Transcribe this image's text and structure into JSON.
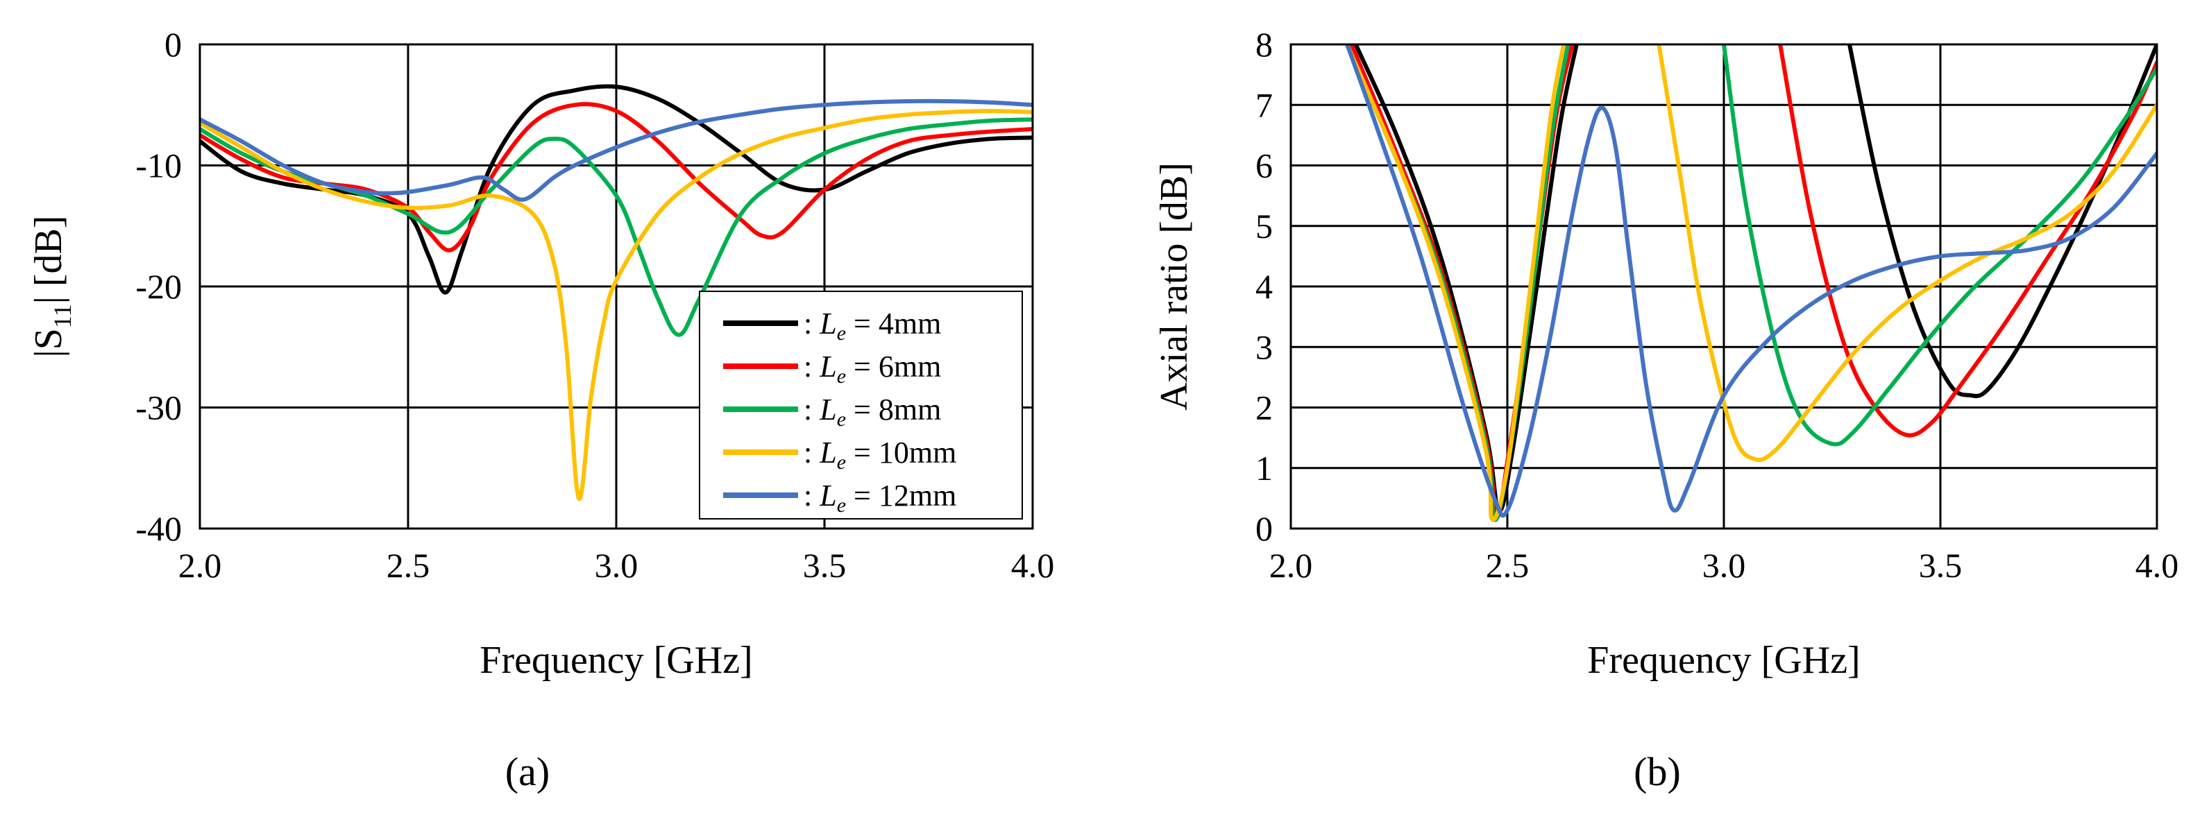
{
  "chart_data": [
    {
      "type": "line",
      "panel_label": "(a)",
      "xlabel": "Frequency [GHz]",
      "ylabel_main": "|S",
      "ylabel_sub": "11",
      "ylabel_tail": "| [dB]",
      "xlim": [
        2.0,
        4.0
      ],
      "ylim": [
        -40,
        0
      ],
      "xticks": [
        2.0,
        2.5,
        3.0,
        3.5,
        4.0
      ],
      "xtick_labels": [
        "2.0",
        "2.5",
        "3.0",
        "3.5",
        "4.0"
      ],
      "yticks": [
        0,
        -10,
        -20,
        -30,
        -40
      ],
      "ytick_labels": [
        "0",
        "-10",
        "-20",
        "-30",
        "-40"
      ],
      "grid": true,
      "legend_position": "lower-right",
      "series": [
        {
          "name": "Le = 4mm",
          "legend_prefix": ": ",
          "legend_var": "L",
          "legend_sub": "e",
          "legend_val": " = 4mm",
          "color": "#000000",
          "x": [
            2.0,
            2.1,
            2.2,
            2.3,
            2.4,
            2.5,
            2.55,
            2.59,
            2.63,
            2.7,
            2.8,
            2.9,
            3.0,
            3.1,
            3.2,
            3.3,
            3.4,
            3.5,
            3.6,
            3.7,
            3.8,
            3.9,
            4.0
          ],
          "y": [
            -8,
            -10.5,
            -11.5,
            -12,
            -12.5,
            -14,
            -17.5,
            -20.5,
            -17,
            -10,
            -5,
            -3.8,
            -3.5,
            -4.5,
            -6.5,
            -9,
            -11.5,
            -12,
            -10.5,
            -9,
            -8.2,
            -7.8,
            -7.7
          ]
        },
        {
          "name": "Le = 6mm",
          "legend_prefix": ": ",
          "legend_var": "L",
          "legend_sub": "e",
          "legend_val": " = 6mm",
          "color": "#ff0000",
          "x": [
            2.0,
            2.1,
            2.2,
            2.3,
            2.4,
            2.5,
            2.55,
            2.6,
            2.65,
            2.7,
            2.8,
            2.9,
            3.0,
            3.1,
            3.2,
            3.3,
            3.35,
            3.4,
            3.5,
            3.6,
            3.7,
            3.8,
            3.9,
            4.0
          ],
          "y": [
            -7.5,
            -9.5,
            -11,
            -11.5,
            -12,
            -13.5,
            -15.5,
            -17,
            -15,
            -11,
            -6.5,
            -5,
            -5.5,
            -8,
            -11.5,
            -14.5,
            -15.8,
            -15.5,
            -12,
            -9.5,
            -8,
            -7.5,
            -7.2,
            -7
          ]
        },
        {
          "name": "Le = 8mm",
          "legend_prefix": ": ",
          "legend_var": "L",
          "legend_sub": "e",
          "legend_val": " = 8mm",
          "color": "#00b050",
          "x": [
            2.0,
            2.1,
            2.2,
            2.3,
            2.4,
            2.5,
            2.6,
            2.7,
            2.8,
            2.85,
            2.9,
            3.0,
            3.05,
            3.1,
            3.15,
            3.2,
            3.3,
            3.4,
            3.5,
            3.6,
            3.7,
            3.8,
            3.9,
            4.0
          ],
          "y": [
            -7,
            -9,
            -10.5,
            -11.5,
            -12.5,
            -14,
            -15.5,
            -12,
            -8.5,
            -7.8,
            -8.5,
            -12.5,
            -16.5,
            -21,
            -24,
            -21,
            -14,
            -11,
            -9,
            -7.8,
            -7,
            -6.6,
            -6.3,
            -6.2
          ]
        },
        {
          "name": "Le = 10mm",
          "legend_prefix": ": ",
          "legend_var": "L",
          "legend_sub": "e",
          "legend_val": " = 10mm",
          "color": "#ffc000",
          "x": [
            2.0,
            2.1,
            2.2,
            2.3,
            2.4,
            2.5,
            2.6,
            2.7,
            2.8,
            2.85,
            2.88,
            2.91,
            2.94,
            2.97,
            3.0,
            3.1,
            3.2,
            3.3,
            3.4,
            3.5,
            3.6,
            3.7,
            3.8,
            3.9,
            4.0
          ],
          "y": [
            -6.5,
            -8.5,
            -10.5,
            -12,
            -13,
            -13.5,
            -13.3,
            -12.5,
            -14,
            -18,
            -25,
            -37.5,
            -29,
            -23,
            -19.5,
            -14,
            -11,
            -9,
            -7.7,
            -6.9,
            -6.2,
            -5.8,
            -5.6,
            -5.5,
            -5.6
          ]
        },
        {
          "name": "Le = 12mm",
          "legend_prefix": ": ",
          "legend_var": "L",
          "legend_sub": "e",
          "legend_val": " = 12mm",
          "color": "#4472c4",
          "x": [
            2.0,
            2.1,
            2.2,
            2.3,
            2.4,
            2.45,
            2.5,
            2.6,
            2.68,
            2.73,
            2.78,
            2.85,
            2.9,
            3.0,
            3.1,
            3.2,
            3.3,
            3.4,
            3.5,
            3.6,
            3.7,
            3.8,
            3.9,
            4.0
          ],
          "y": [
            -6.2,
            -8,
            -10,
            -11.5,
            -12.2,
            -12.3,
            -12.2,
            -11.6,
            -11,
            -12,
            -12.8,
            -11,
            -10,
            -8.5,
            -7.3,
            -6.4,
            -5.8,
            -5.3,
            -5,
            -4.8,
            -4.7,
            -4.7,
            -4.8,
            -5
          ]
        }
      ]
    },
    {
      "type": "line",
      "panel_label": "(b)",
      "xlabel": "Frequency [GHz]",
      "ylabel": "Axial ratio [dB]",
      "xlim": [
        2.0,
        4.0
      ],
      "ylim": [
        0,
        8
      ],
      "xticks": [
        2.0,
        2.5,
        3.0,
        3.5,
        4.0
      ],
      "xtick_labels": [
        "2.0",
        "2.5",
        "3.0",
        "3.5",
        "4.0"
      ],
      "yticks": [
        0,
        1,
        2,
        3,
        4,
        5,
        6,
        7,
        8
      ],
      "ytick_labels": [
        "0",
        "1",
        "2",
        "3",
        "4",
        "5",
        "6",
        "7",
        "8"
      ],
      "grid": true,
      "series": [
        {
          "name": "Le = 4mm",
          "color": "#000000",
          "segments": [
            {
              "x": [
                2.15,
                2.25,
                2.35,
                2.45,
                2.48,
                2.51,
                2.56,
                2.62,
                2.66
              ],
              "y": [
                8,
                6.4,
                4.4,
                1.6,
                0.3,
                1.2,
                3.6,
                6.6,
                8
              ]
            },
            {
              "x": [
                3.29,
                3.36,
                3.44,
                3.52,
                3.57,
                3.61,
                3.68,
                3.76,
                3.84,
                3.92,
                4.0
              ],
              "y": [
                8,
                5.6,
                3.6,
                2.4,
                2.2,
                2.3,
                3.0,
                4.1,
                5.3,
                6.6,
                8
              ]
            }
          ]
        },
        {
          "name": "Le = 6mm",
          "color": "#ff0000",
          "segments": [
            {
              "x": [
                2.14,
                2.25,
                2.35,
                2.45,
                2.475,
                2.5,
                2.55,
                2.61,
                2.65
              ],
              "y": [
                8,
                6.1,
                4.2,
                1.5,
                0.2,
                1.1,
                3.6,
                6.7,
                8
              ]
            },
            {
              "x": [
                3.13,
                3.2,
                3.28,
                3.35,
                3.42,
                3.48,
                3.55,
                3.65,
                3.75,
                3.85,
                3.95,
                4.0
              ],
              "y": [
                8,
                5.2,
                3.0,
                2.0,
                1.55,
                1.75,
                2.4,
                3.4,
                4.5,
                5.6,
                6.9,
                7.7
              ]
            }
          ]
        },
        {
          "name": "Le = 8mm",
          "color": "#00b050",
          "segments": [
            {
              "x": [
                2.13,
                2.25,
                2.35,
                2.45,
                2.47,
                2.5,
                2.55,
                2.6,
                2.64
              ],
              "y": [
                8,
                6.0,
                4.1,
                1.4,
                0.15,
                1.0,
                3.5,
                6.4,
                8
              ]
            },
            {
              "x": [
                3.0,
                3.05,
                3.12,
                3.18,
                3.25,
                3.3,
                3.38,
                3.48,
                3.58,
                3.7,
                3.82,
                3.92,
                4.0
              ],
              "y": [
                8,
                5.4,
                3.0,
                1.8,
                1.4,
                1.6,
                2.3,
                3.2,
                4.0,
                4.8,
                5.7,
                6.7,
                7.6
              ]
            }
          ]
        },
        {
          "name": "Le = 10mm",
          "color": "#ffc000",
          "segments": [
            {
              "x": [
                2.13,
                2.25,
                2.35,
                2.45,
                2.465,
                2.5,
                2.55,
                2.6,
                2.63
              ],
              "y": [
                8,
                6.0,
                4.0,
                1.3,
                0.15,
                1.0,
                3.8,
                6.8,
                8
              ]
            },
            {
              "x": [
                2.85,
                2.9,
                2.95,
                3.02,
                3.07,
                3.12,
                3.2,
                3.3,
                3.4,
                3.5,
                3.6,
                3.7,
                3.8,
                3.9,
                4.0
              ],
              "y": [
                8,
                5.8,
                3.6,
                1.6,
                1.15,
                1.3,
                2.0,
                2.9,
                3.6,
                4.1,
                4.5,
                4.8,
                5.2,
                5.9,
                7.0
              ]
            }
          ]
        },
        {
          "name": "Le = 12mm",
          "color": "#4472c4",
          "segments": [
            {
              "x": [
                2.13,
                2.2,
                2.3,
                2.4,
                2.47,
                2.5,
                2.55,
                2.6,
                2.65,
                2.69,
                2.72,
                2.75,
                2.78,
                2.82,
                2.86,
                2.885,
                2.92,
                3.0,
                3.1,
                3.2,
                3.3,
                3.4,
                3.5,
                3.6,
                3.7,
                3.8,
                3.9,
                4.0
              ],
              "y": [
                8,
                6.6,
                4.5,
                2.0,
                0.5,
                0.3,
                1.5,
                3.2,
                5.2,
                6.5,
                6.95,
                6.3,
                4.6,
                2.4,
                0.9,
                0.3,
                0.75,
                2.2,
                3.1,
                3.7,
                4.1,
                4.35,
                4.5,
                4.55,
                4.6,
                4.8,
                5.3,
                6.2
              ]
            }
          ]
        }
      ]
    }
  ]
}
